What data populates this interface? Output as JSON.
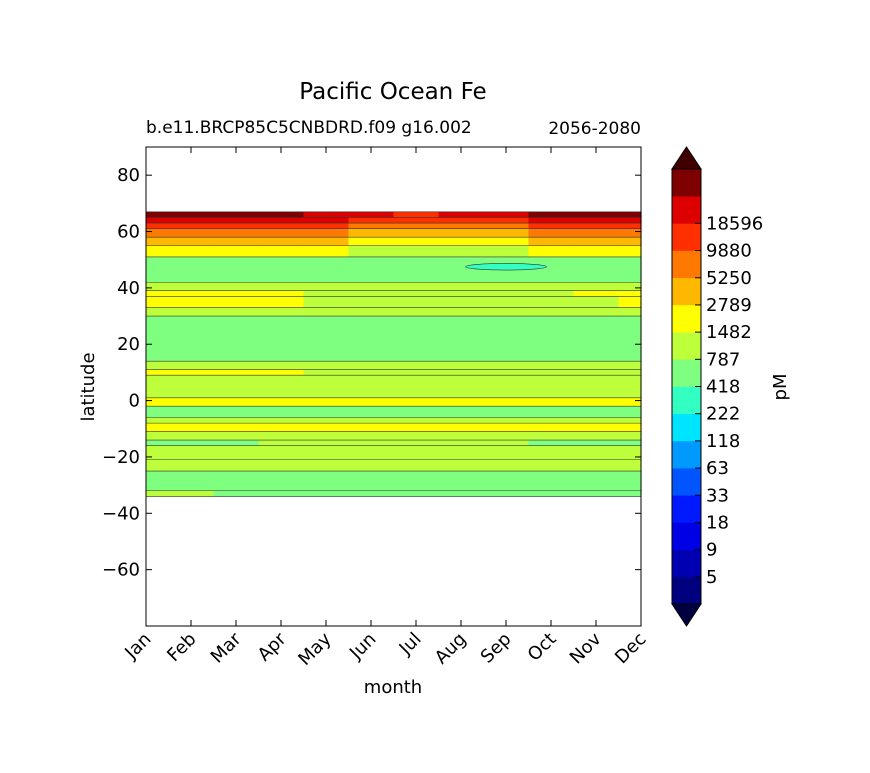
{
  "chart_data": {
    "type": "heatmap",
    "title": "Pacific Ocean Fe",
    "subtitle_left": "b.e11.BRCP85C5CNBDRD.f09 g16.002",
    "subtitle_right": "2056-2080",
    "xlabel": "month",
    "ylabel": "latitude",
    "x_categories": [
      "Jan",
      "Feb",
      "Mar",
      "Apr",
      "May",
      "Jun",
      "Jul",
      "Aug",
      "Sep",
      "Oct",
      "Nov",
      "Dec"
    ],
    "ylim": [
      -80,
      90
    ],
    "y_ticks": [
      80,
      60,
      40,
      20,
      0,
      -20,
      -40,
      -60
    ],
    "y_tick_labels": [
      "80",
      "60",
      "40",
      "20",
      "0",
      "−20",
      "−40",
      "−60"
    ],
    "data_extent_lat": [
      -34,
      67
    ],
    "colorbar": {
      "label": "pM",
      "extend": "both",
      "tick_labels": [
        "5",
        "9",
        "18",
        "33",
        "63",
        "118",
        "222",
        "418",
        "787",
        "1482",
        "2789",
        "5250",
        "9880",
        "18596"
      ],
      "colors": [
        "#00007f",
        "#0000b2",
        "#0000e5",
        "#0019ff",
        "#0055ff",
        "#0099ff",
        "#00e5ff",
        "#33ffc3",
        "#7fff7f",
        "#bcff3a",
        "#ffff00",
        "#ffb800",
        "#ff7800",
        "#ff3000",
        "#dc0000",
        "#7f0000"
      ],
      "under_color": "#000040",
      "over_color": "#400000"
    },
    "bands": [
      {
        "lat_top": 67,
        "lat_bottom": 65,
        "level_by_month": [
          15,
          15,
          15,
          15,
          14,
          14,
          13,
          14,
          14,
          15,
          15,
          15
        ]
      },
      {
        "lat_top": 65,
        "lat_bottom": 63,
        "level_by_month": [
          14,
          14,
          14,
          14,
          14,
          13,
          13,
          13,
          13,
          14,
          14,
          14
        ]
      },
      {
        "lat_top": 63,
        "lat_bottom": 61,
        "level_by_month": [
          13,
          13,
          13,
          13,
          13,
          12,
          12,
          12,
          12,
          13,
          13,
          13
        ]
      },
      {
        "lat_top": 61,
        "lat_bottom": 58,
        "level_by_month": [
          12,
          12,
          12,
          12,
          12,
          11,
          11,
          11,
          11,
          12,
          12,
          12
        ]
      },
      {
        "lat_top": 58,
        "lat_bottom": 55,
        "level_by_month": [
          11,
          11,
          11,
          11,
          11,
          10,
          10,
          10,
          10,
          11,
          11,
          11
        ]
      },
      {
        "lat_top": 55,
        "lat_bottom": 51,
        "level_by_month": [
          10,
          10,
          10,
          10,
          10,
          9,
          9,
          9,
          9,
          10,
          10,
          10
        ]
      },
      {
        "lat_top": 51,
        "lat_bottom": 42,
        "level_by_month": [
          8,
          8,
          8,
          8,
          8,
          8,
          8,
          8,
          8,
          8,
          8,
          8
        ]
      },
      {
        "lat_top": 42,
        "lat_bottom": 39,
        "level_by_month": [
          9,
          9,
          9,
          9,
          9,
          9,
          9,
          9,
          9,
          9,
          9,
          9
        ]
      },
      {
        "lat_top": 39,
        "lat_bottom": 37,
        "level_by_month": [
          10,
          10,
          10,
          10,
          9,
          9,
          9,
          9,
          9,
          9,
          10,
          10
        ]
      },
      {
        "lat_top": 37,
        "lat_bottom": 33,
        "level_by_month": [
          10,
          10,
          10,
          10,
          9,
          9,
          9,
          9,
          9,
          9,
          9,
          10
        ]
      },
      {
        "lat_top": 33,
        "lat_bottom": 30,
        "level_by_month": [
          9,
          9,
          9,
          9,
          9,
          9,
          9,
          9,
          9,
          9,
          9,
          9
        ]
      },
      {
        "lat_top": 30,
        "lat_bottom": 14,
        "level_by_month": [
          8,
          8,
          8,
          8,
          8,
          8,
          8,
          8,
          8,
          8,
          8,
          8
        ]
      },
      {
        "lat_top": 14,
        "lat_bottom": 11,
        "level_by_month": [
          9,
          9,
          9,
          9,
          9,
          9,
          9,
          9,
          9,
          9,
          9,
          9
        ]
      },
      {
        "lat_top": 11,
        "lat_bottom": 9,
        "level_by_month": [
          10,
          10,
          10,
          10,
          9,
          9,
          9,
          9,
          9,
          9,
          9,
          9
        ]
      },
      {
        "lat_top": 9,
        "lat_bottom": 1,
        "level_by_month": [
          9,
          9,
          9,
          9,
          9,
          9,
          9,
          9,
          9,
          9,
          9,
          9
        ]
      },
      {
        "lat_top": 1,
        "lat_bottom": -2,
        "level_by_month": [
          10,
          10,
          10,
          10,
          10,
          10,
          10,
          10,
          10,
          10,
          10,
          10
        ]
      },
      {
        "lat_top": -2,
        "lat_bottom": -6,
        "level_by_month": [
          8,
          8,
          8,
          8,
          8,
          8,
          8,
          8,
          8,
          8,
          8,
          8
        ]
      },
      {
        "lat_top": -6,
        "lat_bottom": -8,
        "level_by_month": [
          9,
          9,
          9,
          9,
          9,
          9,
          9,
          9,
          9,
          9,
          9,
          9
        ]
      },
      {
        "lat_top": -8,
        "lat_bottom": -11,
        "level_by_month": [
          10,
          10,
          10,
          10,
          10,
          10,
          10,
          10,
          10,
          10,
          10,
          10
        ]
      },
      {
        "lat_top": -11,
        "lat_bottom": -14,
        "level_by_month": [
          9,
          9,
          9,
          9,
          9,
          9,
          9,
          9,
          9,
          9,
          9,
          9
        ]
      },
      {
        "lat_top": -14,
        "lat_bottom": -16,
        "level_by_month": [
          8,
          8,
          8,
          9,
          9,
          9,
          9,
          9,
          9,
          8,
          8,
          8
        ]
      },
      {
        "lat_top": -16,
        "lat_bottom": -21,
        "level_by_month": [
          9,
          9,
          9,
          9,
          9,
          9,
          9,
          9,
          9,
          9,
          9,
          9
        ]
      },
      {
        "lat_top": -21,
        "lat_bottom": -25,
        "level_by_month": [
          9,
          9,
          9,
          9,
          9,
          9,
          9,
          9,
          9,
          9,
          9,
          9
        ]
      },
      {
        "lat_top": -25,
        "lat_bottom": -32,
        "level_by_month": [
          8,
          8,
          8,
          8,
          8,
          8,
          8,
          8,
          8,
          8,
          8,
          8
        ]
      },
      {
        "lat_top": -32,
        "lat_bottom": -34,
        "level_by_month": [
          9,
          9,
          8,
          8,
          8,
          8,
          8,
          8,
          8,
          8,
          8,
          8
        ]
      }
    ],
    "patches": [
      {
        "month": "Sep",
        "lat_top": 48.5,
        "lat_bottom": 46.5,
        "level": 7
      }
    ],
    "grid": false,
    "legend": "colorbar-right"
  }
}
